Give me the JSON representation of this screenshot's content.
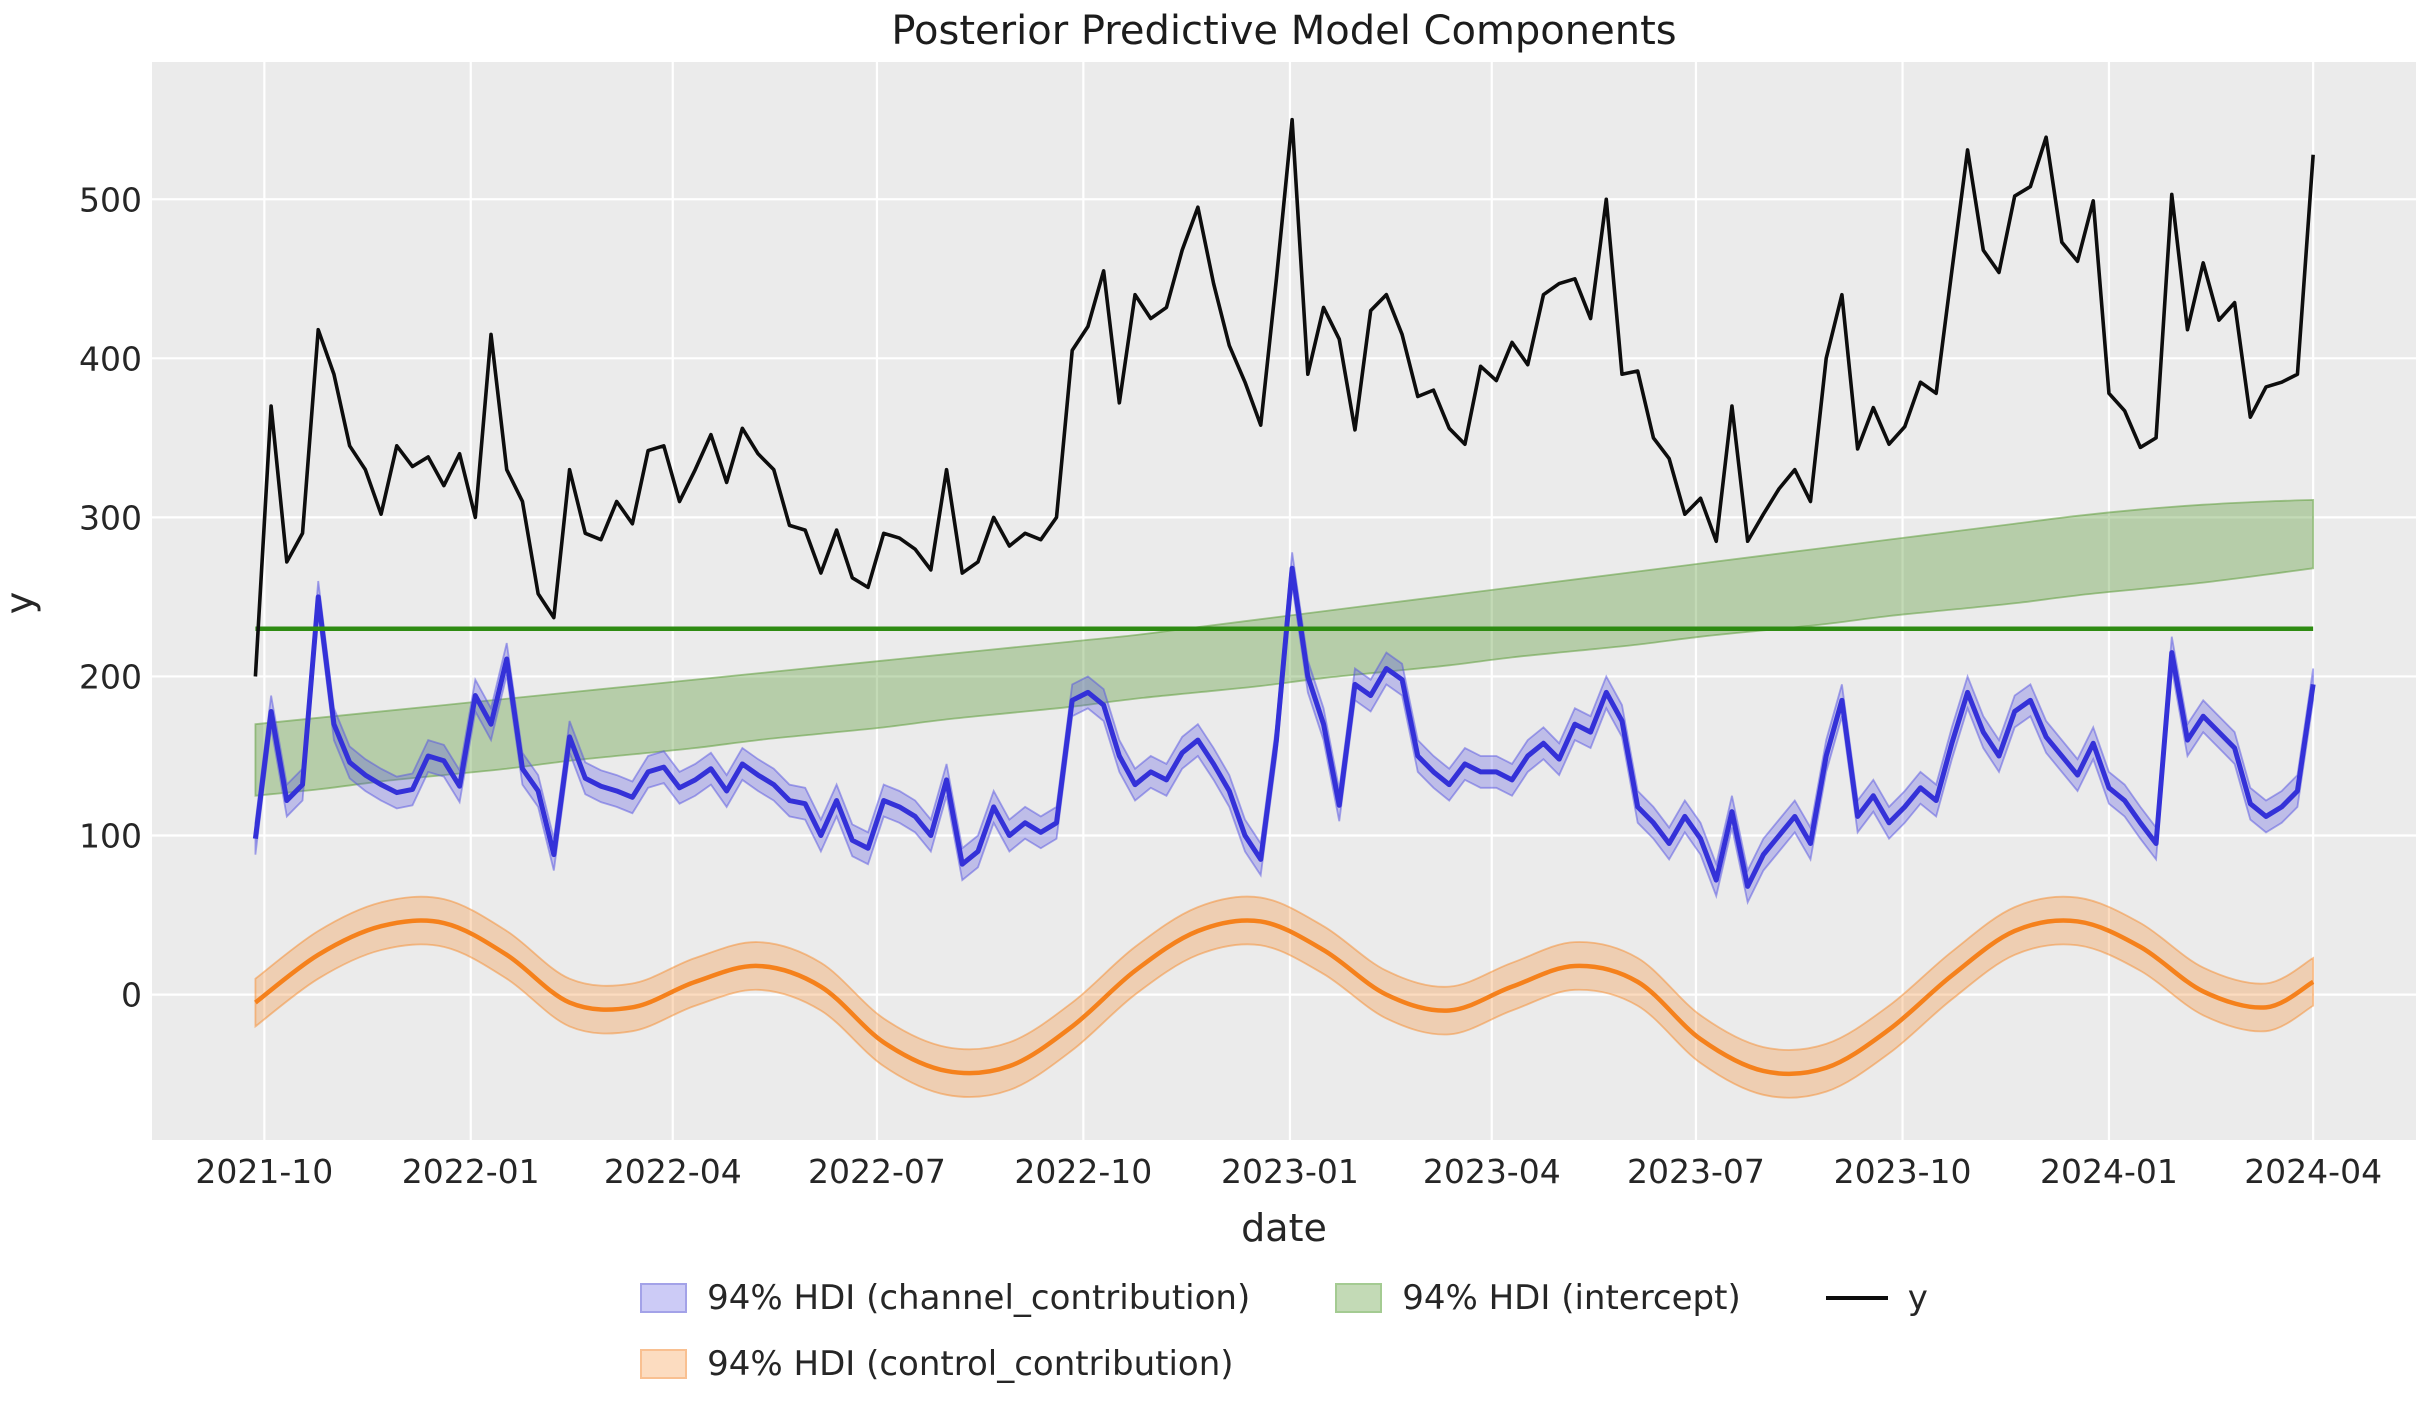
{
  "page": {
    "title": "Posterior Predictive Model Components"
  },
  "axes": {
    "xlabel": "date",
    "ylabel": "y",
    "x_ticks": [
      {
        "label": "2021-10",
        "week": 0.57
      },
      {
        "label": "2022-01",
        "week": 13.71
      },
      {
        "label": "2022-04",
        "week": 26.57
      },
      {
        "label": "2022-07",
        "week": 39.57
      },
      {
        "label": "2022-10",
        "week": 52.71
      },
      {
        "label": "2023-01",
        "week": 65.86
      },
      {
        "label": "2023-04",
        "week": 78.71
      },
      {
        "label": "2023-07",
        "week": 91.71
      },
      {
        "label": "2023-10",
        "week": 104.86
      },
      {
        "label": "2024-01",
        "week": 118.0
      },
      {
        "label": "2024-04",
        "week": 131.0
      }
    ],
    "y_ticks": [
      0,
      100,
      200,
      300,
      400,
      500
    ]
  },
  "legend": {
    "items": [
      {
        "label": "94% HDI (channel_contribution)",
        "type": "patch",
        "fill": "#cccbf6",
        "edge": "#a3a2e8"
      },
      {
        "label": "94% HDI (control_contribution)",
        "type": "patch",
        "fill": "#fcdcc0",
        "edge": "#f9c091"
      },
      {
        "label": "94% HDI (intercept)",
        "type": "patch",
        "fill": "#c3dab6",
        "edge": "#a4cb92"
      },
      {
        "label": "y",
        "type": "line",
        "color": "#0d0d0d"
      }
    ]
  },
  "chart_data": {
    "type": "line",
    "title": "Posterior Predictive Model Components",
    "xlabel": "date",
    "ylabel": "y",
    "grid": true,
    "plot_background": "#ebebeb",
    "grid_color": "#ffffff",
    "ylim": [
      -91,
      587
    ],
    "n_points": 132,
    "x_unit": "weekly index, week 0 at left edge of data",
    "series": [
      {
        "name": "y",
        "style": "line",
        "color": "#0d0d0d",
        "values": [
          200,
          370,
          272,
          290,
          418,
          390,
          345,
          330,
          302,
          345,
          332,
          338,
          320,
          340,
          300,
          415,
          330,
          310,
          252,
          237,
          330,
          290,
          286,
          310,
          296,
          342,
          345,
          310,
          330,
          352,
          322,
          356,
          340,
          330,
          295,
          292,
          265,
          292,
          262,
          256,
          290,
          287,
          280,
          267,
          330,
          265,
          272,
          300,
          282,
          290,
          286,
          300,
          405,
          420,
          455,
          372,
          440,
          425,
          432,
          468,
          495,
          447,
          408,
          385,
          358,
          450,
          550,
          390,
          432,
          412,
          355,
          430,
          440,
          415,
          376,
          380,
          356,
          346,
          395,
          386,
          410,
          396,
          440,
          447,
          450,
          425,
          500,
          390,
          392,
          350,
          337,
          302,
          312,
          285,
          370,
          285,
          302,
          318,
          330,
          310,
          400,
          440,
          343,
          369,
          346,
          357,
          385,
          378,
          455,
          531,
          468,
          454,
          502,
          508,
          539,
          473,
          461,
          499,
          378,
          367,
          344,
          350,
          503,
          418,
          460,
          424,
          435,
          363,
          382,
          385,
          390,
          528
        ]
      },
      {
        "name": "channel_contribution",
        "style": "line_with_hdi_band",
        "hdi_label": "94% HDI (channel_contribution)",
        "line_color": "#3431d8",
        "band_fill": "rgba(85,83,226,0.30)",
        "band_edge": "rgba(85,83,226,0.5)",
        "hdi_halfwidth": 10,
        "values": [
          98,
          178,
          122,
          132,
          250,
          170,
          146,
          138,
          132,
          127,
          129,
          150,
          147,
          131,
          188,
          170,
          211,
          142,
          128,
          88,
          162,
          136,
          131,
          128,
          124,
          140,
          143,
          130,
          135,
          142,
          128,
          145,
          138,
          132,
          122,
          120,
          100,
          122,
          97,
          92,
          122,
          118,
          112,
          100,
          135,
          82,
          90,
          118,
          100,
          108,
          102,
          108,
          185,
          190,
          182,
          150,
          132,
          140,
          135,
          152,
          160,
          145,
          128,
          100,
          85,
          160,
          268,
          200,
          170,
          119,
          195,
          188,
          205,
          198,
          150,
          140,
          132,
          145,
          140,
          140,
          135,
          150,
          158,
          148,
          170,
          165,
          190,
          172,
          118,
          108,
          95,
          112,
          98,
          72,
          115,
          68,
          88,
          100,
          112,
          95,
          150,
          185,
          112,
          125,
          108,
          118,
          130,
          122,
          158,
          190,
          165,
          150,
          178,
          185,
          162,
          150,
          138,
          158,
          130,
          122,
          108,
          95,
          215,
          160,
          175,
          165,
          155,
          120,
          112,
          118,
          128,
          195
        ]
      },
      {
        "name": "control_contribution",
        "style": "smooth_line_with_hdi_band",
        "hdi_label": "94% HDI (control_contribution)",
        "line_color": "#f5811c",
        "band_fill": "rgba(245,140,46,0.30)",
        "band_edge": "rgba(245,140,46,0.5)",
        "hdi_halfwidth": 15,
        "knot_weeks": [
          0,
          4,
          8,
          12,
          16,
          20,
          24,
          28,
          32,
          36,
          40,
          44,
          48,
          52,
          56,
          60,
          64,
          68,
          72,
          76,
          80,
          84,
          88,
          92,
          96,
          100,
          104,
          108,
          112,
          116,
          120,
          124,
          128,
          131
        ],
        "values": [
          -5,
          25,
          43,
          45,
          25,
          -5,
          -8,
          8,
          18,
          5,
          -30,
          -48,
          -45,
          -20,
          15,
          40,
          46,
          28,
          0,
          -10,
          5,
          18,
          8,
          -28,
          -48,
          -46,
          -22,
          12,
          40,
          46,
          30,
          2,
          -8,
          8
        ]
      },
      {
        "name": "intercept",
        "style": "smooth_hdi_band",
        "hdi_label": "94% HDI (intercept)",
        "band_fill": "rgba(96,158,62,0.38)",
        "band_edge": "rgba(96,158,62,0.55)",
        "knot_weeks": [
          0,
          4,
          8,
          12,
          16,
          20,
          24,
          28,
          32,
          36,
          40,
          44,
          48,
          52,
          56,
          60,
          64,
          68,
          72,
          76,
          80,
          84,
          88,
          92,
          96,
          100,
          104,
          108,
          112,
          116,
          120,
          124,
          128,
          131
        ],
        "low": [
          125,
          129,
          134,
          138,
          142,
          147,
          151,
          155,
          160,
          164,
          168,
          173,
          177,
          181,
          186,
          190,
          194,
          199,
          203,
          207,
          212,
          216,
          220,
          225,
          229,
          233,
          238,
          242,
          246,
          251,
          255,
          259,
          264,
          268
        ],
        "high": [
          170,
          174,
          178,
          182,
          186,
          190,
          194,
          198,
          202,
          206,
          210,
          214,
          218,
          222,
          226,
          231,
          236,
          241,
          246,
          251,
          256,
          261,
          266,
          271,
          276,
          281,
          286,
          291,
          296,
          301,
          305,
          308,
          310,
          311
        ]
      },
      {
        "name": "intercept_reference_line",
        "style": "hline",
        "color": "#2e8b12",
        "value": 230
      }
    ]
  }
}
